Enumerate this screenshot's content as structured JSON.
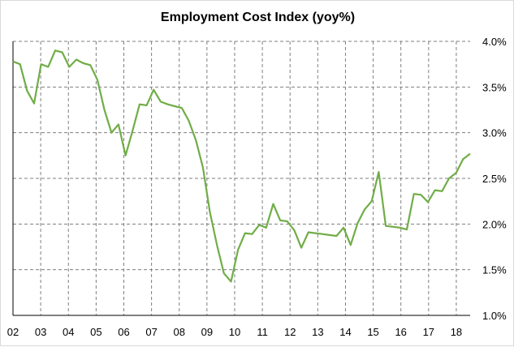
{
  "chart_data": {
    "type": "line",
    "title": "Employment Cost Index (yoy%)",
    "xlabel": "",
    "ylabel": "",
    "ylim": [
      1.0,
      4.0
    ],
    "y_ticks": [
      "4.0%",
      "3.5%",
      "3.0%",
      "2.5%",
      "2.0%",
      "1.5%",
      "1.0%"
    ],
    "y_tick_values": [
      4.0,
      3.5,
      3.0,
      2.5,
      2.0,
      1.5,
      1.0
    ],
    "x_ticks": [
      "02",
      "03",
      "04",
      "05",
      "06",
      "07",
      "08",
      "09",
      "10",
      "11",
      "12",
      "13",
      "14",
      "15",
      "16",
      "17",
      "18"
    ],
    "y_axis_position": "right",
    "grid": "horizontal dashed and vertical dashed at year boundaries",
    "legend": "none",
    "colors": {
      "line": "#70ad47",
      "grid": "#7f7f7f"
    },
    "series": [
      {
        "values": [
          3.78,
          3.75,
          3.46,
          3.32,
          3.75,
          3.72,
          3.9,
          3.88,
          3.72,
          3.8,
          3.76,
          3.74,
          3.58,
          3.25,
          3.0,
          3.09,
          2.75,
          3.02,
          3.31,
          3.3,
          3.47,
          3.34,
          3.31,
          3.29,
          3.27,
          3.13,
          2.92,
          2.62,
          2.13,
          1.77,
          1.46,
          1.37,
          1.72,
          1.9,
          1.89,
          1.99,
          1.96,
          2.22,
          2.04,
          2.03,
          1.93,
          1.74,
          1.91,
          1.9,
          1.89,
          1.88,
          1.87,
          1.96,
          1.77,
          2.01,
          2.16,
          2.25,
          2.57,
          1.98,
          1.97,
          1.96,
          1.94,
          2.33,
          2.32,
          2.24,
          2.37,
          2.36,
          2.5,
          2.56,
          2.71,
          2.77
        ]
      }
    ]
  }
}
